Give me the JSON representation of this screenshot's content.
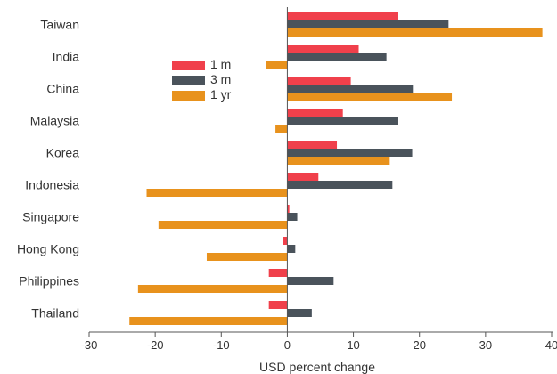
{
  "chart_data": {
    "type": "bar",
    "orientation": "horizontal",
    "title": "",
    "xlabel": "USD percent change",
    "ylabel": "",
    "xlim": [
      -30,
      40
    ],
    "xticks": [
      -30,
      -20,
      -10,
      0,
      10,
      20,
      30,
      40
    ],
    "grid": false,
    "legend_position": "top-left",
    "categories": [
      "Taiwan",
      "India",
      "China",
      "Malaysia",
      "Korea",
      "Indonesia",
      "Singapore",
      "Hong Kong",
      "Philippines",
      "Thailand"
    ],
    "series": [
      {
        "name": "1 m",
        "color": "#f0404b",
        "values": [
          16.8,
          10.8,
          9.6,
          8.4,
          7.5,
          4.7,
          0.3,
          -0.6,
          -2.8,
          -2.8
        ]
      },
      {
        "name": "3 m",
        "color": "#4a535b",
        "values": [
          24.4,
          15.0,
          19.0,
          16.8,
          18.9,
          15.9,
          1.5,
          1.2,
          7.0,
          3.7
        ]
      },
      {
        "name": "1 yr",
        "color": "#e8921d",
        "values": [
          38.6,
          -3.2,
          24.9,
          -1.8,
          15.5,
          -21.3,
          -19.5,
          -12.2,
          -22.6,
          -23.9
        ]
      }
    ]
  }
}
